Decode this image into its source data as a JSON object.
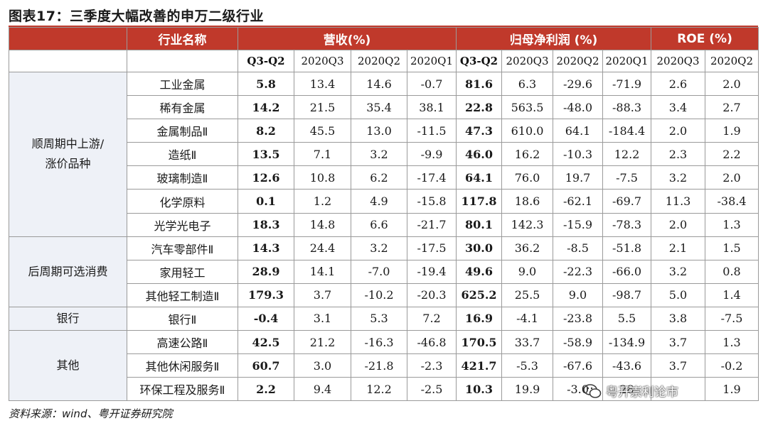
{
  "title": "图表17：三季度大幅改善的申万二级行业",
  "headers": {
    "industry": "行业名称",
    "revenue": "营收(%)",
    "profit": "归母净利润 (%)",
    "roe": "ROE (%)"
  },
  "subheaders": [
    "Q3-Q2",
    "2020Q3",
    "2020Q2",
    "2020Q1",
    "Q3-Q2",
    "2020Q3",
    "2020Q2",
    "2020Q1",
    "2020Q3",
    "2020Q2"
  ],
  "groups": [
    {
      "label": "顺周期中上游/\n涨价品种",
      "rows": [
        {
          "name": "工业金属",
          "cells": [
            "5.8",
            "13.4",
            "14.6",
            "-0.7",
            "81.6",
            "6.3",
            "-29.6",
            "-71.9",
            "2.6",
            "2.0"
          ]
        },
        {
          "name": "稀有金属",
          "cells": [
            "14.2",
            "21.5",
            "35.4",
            "38.1",
            "22.8",
            "563.5",
            "-48.0",
            "-88.3",
            "3.4",
            "2.7"
          ]
        },
        {
          "name": "金属制品Ⅱ",
          "cells": [
            "8.2",
            "45.5",
            "13.0",
            "-11.5",
            "47.3",
            "610.0",
            "64.1",
            "-184.4",
            "2.0",
            "1.9"
          ]
        },
        {
          "name": "造纸Ⅱ",
          "cells": [
            "13.5",
            "7.1",
            "3.2",
            "-9.9",
            "46.0",
            "16.2",
            "-10.3",
            "12.2",
            "2.3",
            "2.2"
          ]
        },
        {
          "name": "玻璃制造Ⅱ",
          "cells": [
            "12.6",
            "10.8",
            "6.2",
            "-17.4",
            "64.1",
            "76.0",
            "19.7",
            "-7.5",
            "3.2",
            "2.0"
          ]
        },
        {
          "name": "化学原料",
          "cells": [
            "0.1",
            "1.2",
            "4.9",
            "-15.8",
            "117.8",
            "18.6",
            "-62.1",
            "-69.7",
            "11.3",
            "-38.4"
          ]
        },
        {
          "name": "光学光电子",
          "cells": [
            "18.3",
            "14.8",
            "6.6",
            "-21.7",
            "80.1",
            "142.3",
            "-15.9",
            "-78.3",
            "2.0",
            "1.3"
          ]
        }
      ]
    },
    {
      "label": "后周期可选消费",
      "rows": [
        {
          "name": "汽车零部件Ⅱ",
          "cells": [
            "14.3",
            "24.4",
            "3.2",
            "-17.5",
            "30.0",
            "36.2",
            "-8.5",
            "-51.8",
            "2.1",
            "1.5"
          ]
        },
        {
          "name": "家用轻工",
          "cells": [
            "28.9",
            "14.1",
            "-7.0",
            "-19.4",
            "49.6",
            "9.0",
            "-22.3",
            "-66.0",
            "3.2",
            "0.8"
          ]
        },
        {
          "name": "其他轻工制造Ⅱ",
          "cells": [
            "179.3",
            "3.7",
            "-10.2",
            "-20.3",
            "625.2",
            "25.5",
            "9.0",
            "-98.7",
            "5.0",
            "1.4"
          ]
        }
      ]
    },
    {
      "label": "银行",
      "rows": [
        {
          "name": "银行Ⅱ",
          "cells": [
            "-0.4",
            "3.1",
            "5.3",
            "7.2",
            "16.9",
            "-4.1",
            "-23.8",
            "5.5",
            "3.8",
            "-7.5"
          ]
        }
      ]
    },
    {
      "label": "其他",
      "rows": [
        {
          "name": "高速公路Ⅱ",
          "cells": [
            "42.5",
            "21.2",
            "-16.3",
            "-46.8",
            "170.5",
            "33.7",
            "-58.9",
            "-134.9",
            "3.7",
            "1.3"
          ]
        },
        {
          "name": "其他休闲服务Ⅱ",
          "cells": [
            "60.7",
            "3.0",
            "-21.8",
            "-2.3",
            "421.7",
            "-5.3",
            "-67.6",
            "-43.6",
            "3.7",
            "-0.2"
          ]
        },
        {
          "name": "环保工程及服务Ⅱ",
          "cells": [
            "2.2",
            "9.4",
            "12.2",
            "-2.5",
            "10.3",
            "19.9",
            "-3.0",
            "28",
            "",
            "1.9"
          ]
        }
      ]
    }
  ],
  "source": "资料来源：wind、粤开证券研究院",
  "watermark": "粤开崇利论市",
  "colors": {
    "header_bg": "#c0392b",
    "group_bg": "#eef1f7",
    "grid": "#9a9a9a"
  }
}
